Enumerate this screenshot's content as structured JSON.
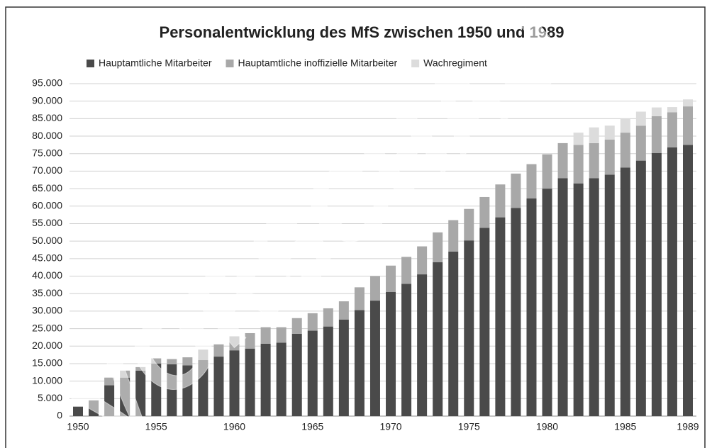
{
  "chart_data": {
    "type": "stacked_bar",
    "title": "Personalentwicklung des MfS zwischen 1950 und 1989",
    "watermark": "VORSCHAU",
    "categories": [
      "1950",
      null,
      null,
      null,
      null,
      "1955",
      null,
      null,
      null,
      null,
      "1960",
      null,
      null,
      null,
      null,
      "1965",
      null,
      null,
      null,
      null,
      "1970",
      null,
      null,
      null,
      null,
      "1975",
      null,
      null,
      null,
      null,
      "1980",
      null,
      null,
      null,
      null,
      "1985",
      null,
      null,
      null,
      "1989"
    ],
    "series": [
      {
        "name": "Hauptamtliche Mitarbeiter",
        "color": "#4a4a4a",
        "values": [
          2700,
          4500,
          8800,
          11000,
          13000,
          15000,
          14800,
          14500,
          16000,
          17000,
          18800,
          19300,
          20700,
          21000,
          23500,
          24400,
          25600,
          27600,
          30300,
          33000,
          35500,
          37800,
          40500,
          44000,
          47000,
          50200,
          53800,
          56800,
          59500,
          62200,
          65000,
          68000,
          66500,
          68000,
          69000,
          71000,
          73000,
          75200,
          76800,
          77500
        ]
      },
      {
        "name": "Hauptamtliche inoffizielle Mitarbeiter",
        "color": "#a8a8a8",
        "values": [
          0,
          0,
          2200,
          2000,
          1000,
          1500,
          1500,
          2300,
          3000,
          3500,
          4000,
          4400,
          4700,
          4400,
          4500,
          5000,
          5200,
          5200,
          6500,
          7000,
          7500,
          7700,
          8000,
          8500,
          9000,
          9000,
          8800,
          9400,
          9800,
          9800,
          9800,
          10000,
          11000,
          10000,
          10000,
          10000,
          10000,
          10500,
          10000,
          11000
        ]
      },
      {
        "name": "Wachregiment",
        "color": "#dcdcdc",
        "values": [
          0,
          0,
          0,
          0,
          0,
          0,
          0,
          0,
          0,
          0,
          0,
          0,
          0,
          0,
          0,
          0,
          0,
          0,
          0,
          0,
          0,
          0,
          0,
          0,
          0,
          0,
          0,
          0,
          0,
          0,
          0,
          0,
          3500,
          4500,
          4000,
          4000,
          4000,
          2500,
          1500,
          2000
        ]
      }
    ],
    "ylim": [
      0,
      95000
    ],
    "yticks": [
      0,
      {
        "value": 5000,
        "label": "5.000"
      },
      {
        "value": 10000,
        "label": "10.000"
      },
      {
        "value": 15000,
        "label": "15.000"
      },
      {
        "value": 20000,
        "label": "20.000"
      },
      {
        "value": 25000,
        "label": "25.000"
      },
      {
        "value": 30000,
        "label": "30.000"
      },
      {
        "value": 35000,
        "label": "35.000"
      },
      {
        "value": 40000,
        "label": "40.000"
      },
      {
        "value": 45000,
        "label": "45.000"
      },
      {
        "value": 50000,
        "label": "50.000"
      },
      {
        "value": 55000,
        "label": "55.000"
      },
      {
        "value": 60000,
        "label": "60.000"
      },
      {
        "value": 65000,
        "label": "65.000"
      },
      {
        "value": 70000,
        "label": "70.000"
      },
      {
        "value": 75000,
        "label": "75.000"
      },
      {
        "value": 80000,
        "label": "80.000"
      },
      {
        "value": 85000,
        "label": "85.000"
      },
      {
        "value": 90000,
        "label": "90.000"
      },
      {
        "value": 95000,
        "label": "95.000"
      }
    ],
    "grid": true
  }
}
